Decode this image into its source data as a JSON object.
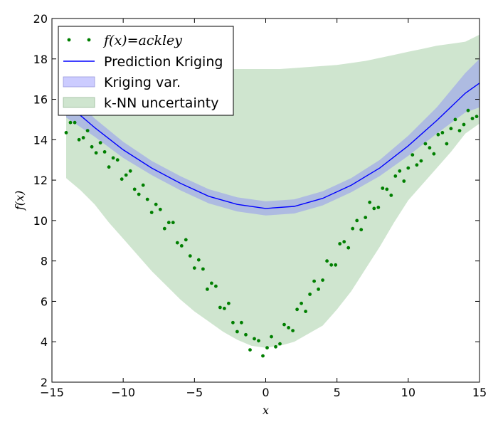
{
  "chart_data": {
    "type": "line",
    "xlabel": "x",
    "ylabel": "f(x)",
    "xlim": [
      -15,
      15
    ],
    "ylim": [
      2,
      20
    ],
    "xticks": [
      -15,
      -10,
      -5,
      0,
      5,
      10,
      15
    ],
    "xtick_labels": [
      "−15",
      "−10",
      "−5",
      "0",
      "5",
      "10",
      "15"
    ],
    "yticks": [
      2,
      4,
      6,
      8,
      10,
      12,
      14,
      16,
      18,
      20
    ],
    "ytick_labels": [
      "2",
      "4",
      "6",
      "8",
      "10",
      "12",
      "14",
      "16",
      "18",
      "20"
    ],
    "legend_position": "top-left",
    "colors": {
      "points": "#007f00",
      "prediction": "#0000ff",
      "kriging_band": "#a8b4e4",
      "knn_band": "#cfe5cf"
    },
    "legend": [
      {
        "label": "f(x)=ackley",
        "kind": "points"
      },
      {
        "label": "Prediction Kriging",
        "kind": "line"
      },
      {
        "label": "Kriging var.",
        "kind": "kriging"
      },
      {
        "label": "k-NN uncertainty",
        "kind": "knn"
      }
    ],
    "series": [
      {
        "name": "f(x)=ackley",
        "kind": "scatter",
        "x": [
          -14,
          -13.7,
          -13.4,
          -13.1,
          -12.8,
          -12.5,
          -12.2,
          -11.9,
          -11.6,
          -11.3,
          -11,
          -10.7,
          -10.4,
          -10.1,
          -9.8,
          -9.5,
          -9.2,
          -8.9,
          -8.6,
          -8.3,
          -8,
          -7.7,
          -7.4,
          -7.1,
          -6.8,
          -6.5,
          -6.2,
          -5.9,
          -5.6,
          -5.3,
          -5,
          -4.7,
          -4.4,
          -4.1,
          -3.8,
          -3.5,
          -3.2,
          -2.9,
          -2.6,
          -2.3,
          -2,
          -1.7,
          -1.4,
          -1.1,
          -0.8,
          -0.5,
          -0.2,
          0.1,
          0.4,
          0.7,
          1,
          1.3,
          1.6,
          1.9,
          2.2,
          2.5,
          2.8,
          3.1,
          3.4,
          3.7,
          4,
          4.3,
          4.6,
          4.9,
          5.2,
          5.5,
          5.8,
          6.1,
          6.4,
          6.7,
          7,
          7.3,
          7.6,
          7.9,
          8.2,
          8.5,
          8.8,
          9.1,
          9.4,
          9.7,
          10,
          10.3,
          10.6,
          10.9,
          11.2,
          11.5,
          11.8,
          12.1,
          12.4,
          12.7,
          13,
          13.3,
          13.6,
          13.9,
          14.2,
          14.5,
          14.8
        ],
        "y": [
          14.35,
          14.85,
          14.85,
          14.0,
          14.1,
          14.45,
          13.65,
          13.35,
          13.85,
          13.4,
          12.65,
          13.1,
          13.0,
          12.05,
          12.25,
          12.45,
          11.55,
          11.3,
          11.75,
          11.05,
          10.4,
          10.8,
          10.55,
          9.6,
          9.9,
          9.9,
          8.9,
          8.75,
          9.05,
          8.25,
          7.65,
          8.05,
          7.6,
          6.6,
          6.9,
          6.75,
          5.7,
          5.65,
          5.9,
          4.95,
          4.5,
          4.95,
          4.35,
          3.6,
          4.15,
          4.05,
          3.3,
          3.7,
          4.25,
          3.75,
          3.9,
          4.85,
          4.7,
          4.55,
          5.6,
          5.9,
          5.5,
          6.35,
          7.0,
          6.6,
          7.05,
          8.0,
          7.8,
          7.8,
          8.85,
          8.95,
          8.65,
          9.6,
          10.0,
          9.55,
          10.15,
          10.9,
          10.6,
          10.65,
          11.6,
          11.55,
          11.25,
          12.2,
          12.45,
          11.95,
          12.6,
          13.25,
          12.75,
          12.95,
          13.8,
          13.6,
          13.3,
          14.25,
          14.35,
          13.8,
          14.55,
          15.0,
          14.45,
          14.75,
          15.45,
          15.05,
          15.15
        ]
      },
      {
        "name": "Prediction Kriging",
        "kind": "line",
        "x": [
          -14,
          -12,
          -10,
          -8,
          -6,
          -4,
          -2,
          0,
          2,
          4,
          6,
          8,
          10,
          12,
          14,
          15
        ],
        "y": [
          15.8,
          14.6,
          13.5,
          12.6,
          11.85,
          11.2,
          10.8,
          10.6,
          10.7,
          11.1,
          11.75,
          12.6,
          13.7,
          14.95,
          16.3,
          16.8
        ]
      },
      {
        "name": "Kriging var.",
        "kind": "band",
        "x": [
          -14,
          -12,
          -10,
          -8,
          -6,
          -4,
          -2,
          0,
          2,
          4,
          6,
          8,
          10,
          12,
          14,
          15
        ],
        "lower": [
          15.1,
          14.15,
          13.1,
          12.25,
          11.5,
          10.85,
          10.45,
          10.25,
          10.35,
          10.75,
          11.4,
          12.2,
          13.2,
          14.3,
          15.35,
          15.6
        ],
        "upper": [
          16.5,
          15.05,
          13.9,
          12.95,
          12.2,
          11.55,
          11.15,
          10.95,
          11.05,
          11.45,
          12.1,
          13.0,
          14.2,
          15.6,
          17.3,
          18.0
        ]
      },
      {
        "name": "k-NN uncertainty",
        "kind": "band",
        "x": [
          -14,
          -13,
          -12,
          -11,
          -10,
          -9,
          -8,
          -7,
          -6,
          -5,
          -4,
          -3,
          -2,
          -1,
          0,
          1,
          2,
          3,
          4,
          5,
          6,
          7,
          8,
          9,
          10,
          11,
          12,
          13,
          14,
          15
        ],
        "lower": [
          12.1,
          11.5,
          10.8,
          9.9,
          9.1,
          8.3,
          7.5,
          6.8,
          6.1,
          5.5,
          5.0,
          4.5,
          4.1,
          3.8,
          3.7,
          3.8,
          4.0,
          4.4,
          4.8,
          5.6,
          6.5,
          7.6,
          8.7,
          9.9,
          11.0,
          11.8,
          12.6,
          13.4,
          14.3,
          14.8
        ],
        "upper": [
          16.8,
          17.3,
          17.6,
          17.7,
          17.7,
          17.6,
          17.6,
          17.5,
          17.5,
          17.5,
          17.5,
          17.5,
          17.5,
          17.5,
          17.5,
          17.5,
          17.55,
          17.6,
          17.65,
          17.7,
          17.8,
          17.9,
          18.05,
          18.2,
          18.35,
          18.5,
          18.65,
          18.75,
          18.85,
          19.2
        ]
      }
    ]
  }
}
